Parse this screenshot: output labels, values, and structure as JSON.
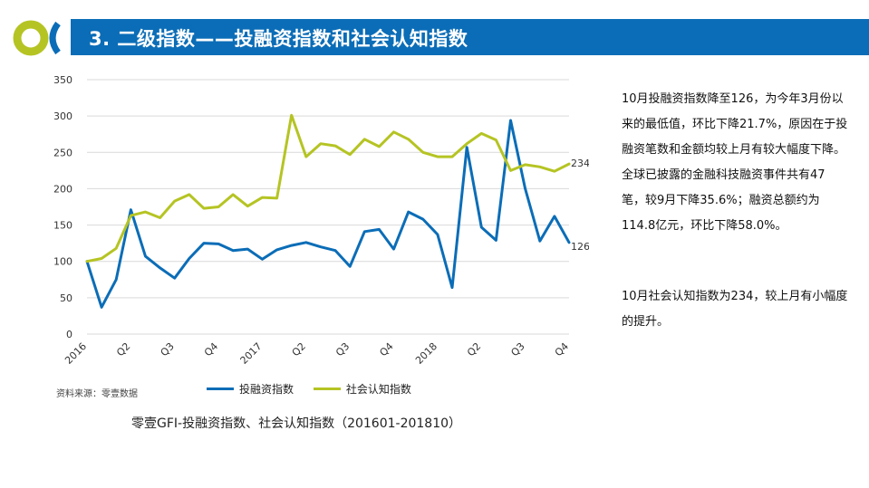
{
  "header": {
    "title": "3. 二级指数——投融资指数和社会认知指数",
    "brand_colors": {
      "bar": "#0b6db7",
      "logo_blue": "#0b6db7",
      "logo_green": "#b5c423"
    }
  },
  "chart_data": {
    "type": "line",
    "ylim": [
      0,
      350
    ],
    "yticks": [
      0,
      50,
      100,
      150,
      200,
      250,
      300,
      350
    ],
    "xtick_labels": [
      "2016",
      "Q2",
      "Q3",
      "Q4",
      "2017",
      "Q2",
      "Q3",
      "Q4",
      "2018",
      "Q2",
      "Q3",
      "Q4"
    ],
    "grid": "horizontal",
    "legend_placement": "bottom",
    "series": [
      {
        "name": "投融资指数",
        "color": "#0b6db7",
        "values": [
          100,
          37,
          75,
          171,
          107,
          91,
          77,
          104,
          125,
          124,
          115,
          117,
          103,
          116,
          122,
          126,
          120,
          115,
          93,
          141,
          144,
          117,
          168,
          158,
          137,
          64,
          257,
          147,
          129,
          294,
          200,
          128,
          162,
          126
        ],
        "end_label": "126"
      },
      {
        "name": "社会认知指数",
        "color": "#b5c423",
        "values": [
          100,
          104,
          118,
          163,
          168,
          160,
          183,
          192,
          173,
          175,
          192,
          176,
          188,
          187,
          301,
          244,
          262,
          259,
          247,
          268,
          258,
          278,
          268,
          250,
          244,
          244,
          262,
          276,
          267,
          225,
          233,
          230,
          224,
          234
        ],
        "end_label": "234"
      }
    ],
    "source_note": "资料来源：零壹数据",
    "caption": "零壹GFI-投融资指数、社会认知指数（201601-201810）"
  },
  "side_text": {
    "para1": "10月投融资指数降至126，为今年3月份以来的最低值，环比下降21.7%，原因在于投融资笔数和金额均较上月有较大幅度下降。全球已披露的金融科技融资事件共有47笔，较9月下降35.6%；融资总额约为114.8亿元，环比下降58.0%。",
    "para2": "10月社会认知指数为234，较上月有小幅度的提升。"
  }
}
